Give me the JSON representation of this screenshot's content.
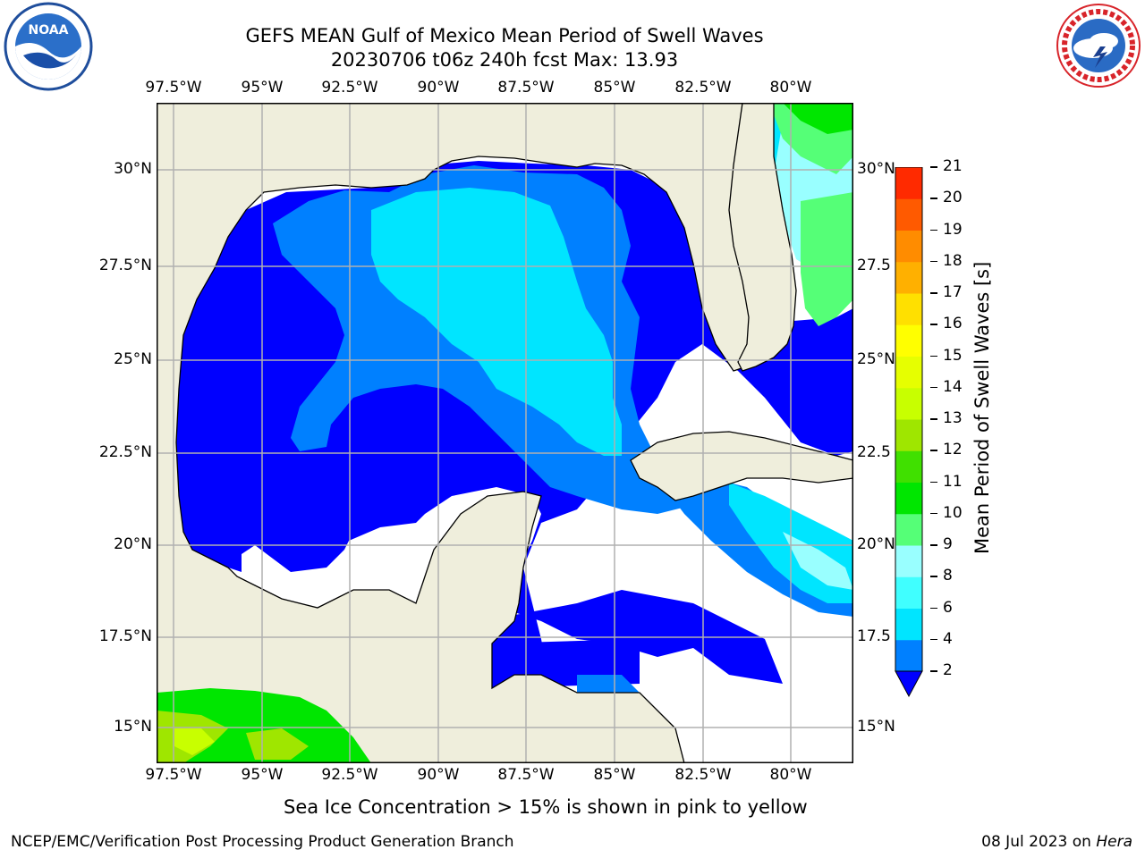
{
  "title_line1": "GEFS MEAN Gulf of Mexico Mean Period of Swell Waves",
  "title_line2": "20230706 t06z 240h fcst   Max: 13.93",
  "logos": {
    "left": "noaa-logo",
    "right": "nws-logo"
  },
  "lon_ticks": [
    "97.5°W",
    "95°W",
    "92.5°W",
    "90°W",
    "87.5°W",
    "85°W",
    "82.5°W",
    "80°W"
  ],
  "lat_ticks_left": [
    "30°N",
    "27.5°N",
    "25°N",
    "22.5°N",
    "20°N",
    "17.5°N",
    "15°N"
  ],
  "lat_ticks_right": [
    "30°N",
    "27.5",
    "25°N",
    "22.5",
    "20°N",
    "17.5",
    "15°N"
  ],
  "colorbar": {
    "label": "Mean Period of Swell Waves [s]",
    "ticks": [
      "2",
      "4",
      "6",
      "8",
      "9",
      "10",
      "11",
      "12",
      "13",
      "14",
      "15",
      "16",
      "17",
      "18",
      "19",
      "20",
      "21"
    ],
    "colors": [
      "#0080ff",
      "#00e5ff",
      "#40ffff",
      "#99ffff",
      "#55ff77",
      "#00e600",
      "#40e000",
      "#9fe600",
      "#c8ff00",
      "#e6ff00",
      "#ffff00",
      "#ffe000",
      "#ffb000",
      "#ff8c00",
      "#ff5a00",
      "#ff2a00"
    ],
    "extend_color": "#0000ff"
  },
  "map": {
    "land_color": "#efeedc",
    "water_undefined": "#ffffff",
    "grid_color": "#b0b0b0",
    "lon_range": [
      -98,
      -78.3
    ],
    "lat_range": [
      14,
      32
    ]
  },
  "note": "Sea Ice Concentration > 15% is shown in pink to yellow",
  "footer_left": "NCEP/EMC/Verification Post Processing Product Generation Branch",
  "footer_right_prefix": "08 Jul 2023 on ",
  "footer_right_host": "Hera"
}
